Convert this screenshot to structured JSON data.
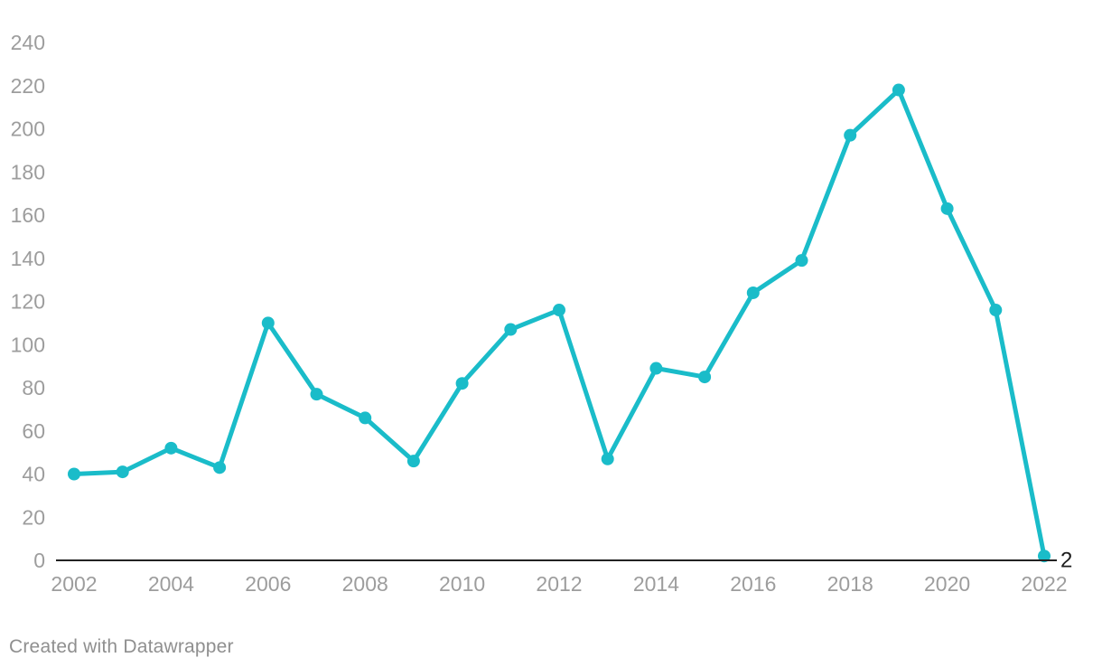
{
  "chart_data": {
    "type": "line",
    "x": [
      2002,
      2003,
      2004,
      2005,
      2006,
      2007,
      2008,
      2009,
      2010,
      2011,
      2012,
      2013,
      2014,
      2015,
      2016,
      2017,
      2018,
      2019,
      2020,
      2021,
      2022
    ],
    "values": [
      40,
      41,
      52,
      43,
      110,
      77,
      66,
      46,
      82,
      107,
      116,
      47,
      89,
      85,
      124,
      139,
      197,
      218,
      163,
      116,
      2
    ],
    "title": "",
    "xlabel": "",
    "ylabel": "",
    "ylim": [
      0,
      240
    ],
    "y_ticks": [
      0,
      20,
      40,
      60,
      80,
      100,
      120,
      140,
      160,
      180,
      200,
      220,
      240
    ],
    "x_ticks": [
      2002,
      2004,
      2006,
      2008,
      2010,
      2012,
      2014,
      2016,
      2018,
      2020,
      2022
    ],
    "grid": false,
    "legend": false,
    "end_label": "2",
    "colors": {
      "line": "#1ABCC9",
      "point": "#1ABCC9",
      "axis_line": "#222222",
      "tick_label": "#9d9d9d",
      "end_label": "#1d1d1d"
    }
  },
  "footer": {
    "credit": "Created with Datawrapper"
  }
}
